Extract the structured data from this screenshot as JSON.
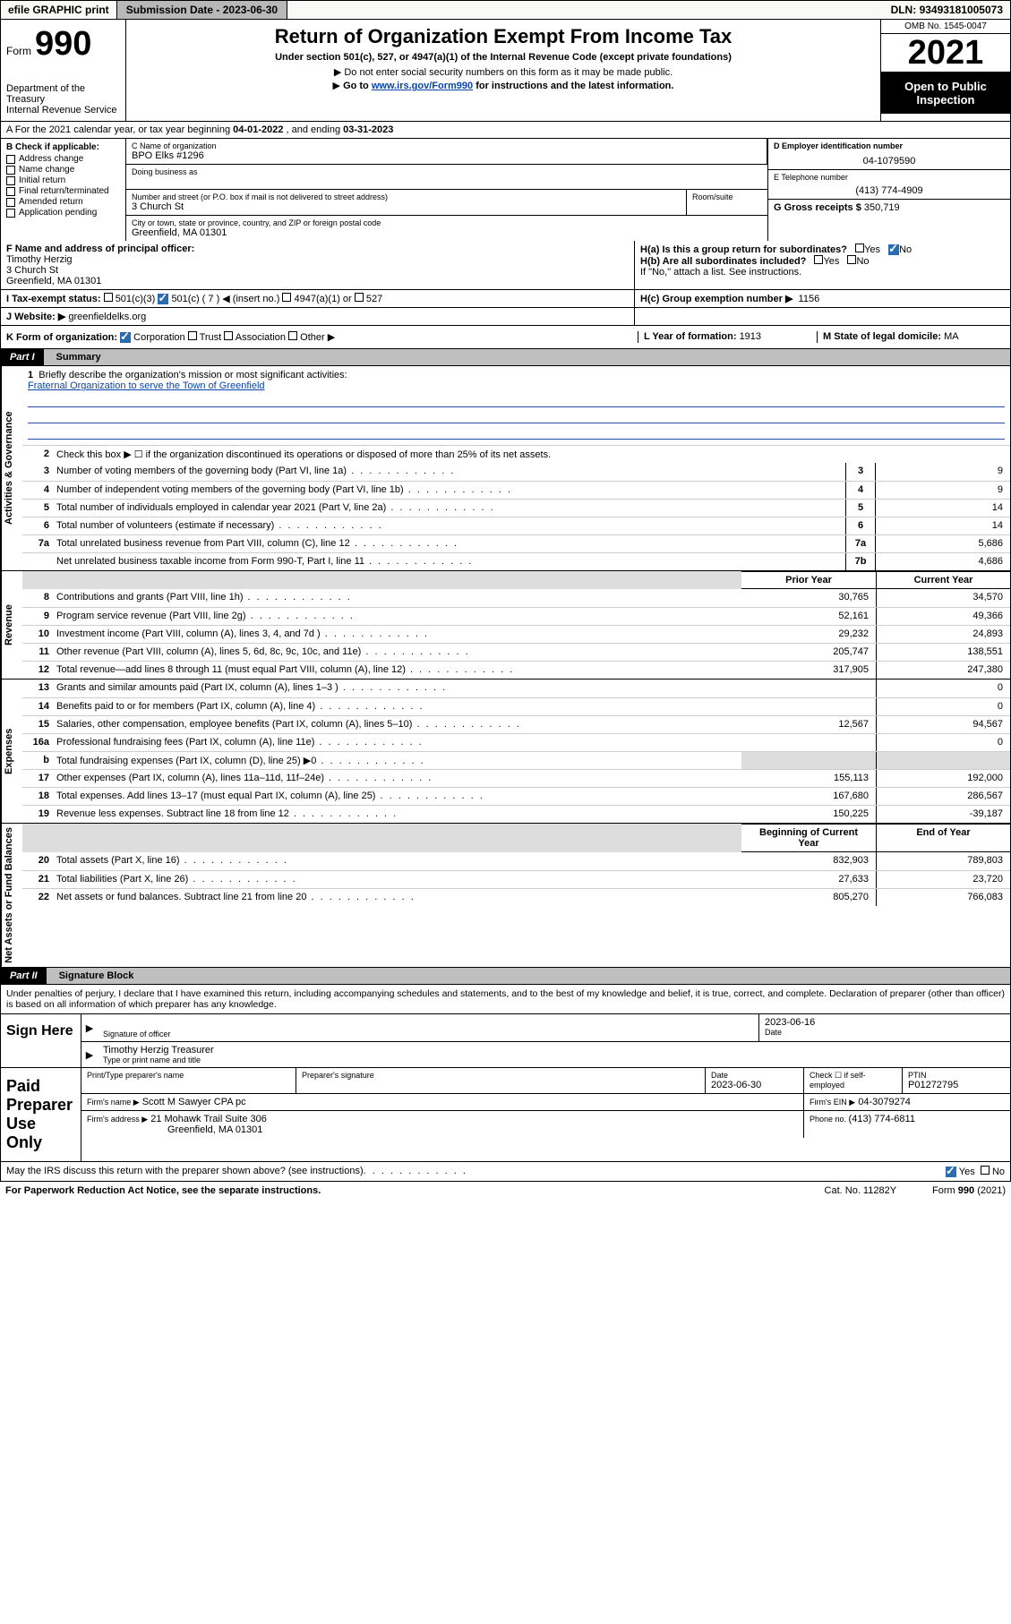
{
  "topbar": {
    "efile": "efile GRAPHIC print",
    "sub_label": "Submission Date - ",
    "sub_date": "2023-06-30",
    "dln_label": "DLN: ",
    "dln": "93493181005073"
  },
  "header": {
    "form_word": "Form",
    "form_num": "990",
    "dept": "Department of the Treasury",
    "irs": "Internal Revenue Service",
    "title": "Return of Organization Exempt From Income Tax",
    "subtitle": "Under section 501(c), 527, or 4947(a)(1) of the Internal Revenue Code (except private foundations)",
    "note1": "Do not enter social security numbers on this form as it may be made public.",
    "note2_pre": "Go to ",
    "note2_link": "www.irs.gov/Form990",
    "note2_post": " for instructions and the latest information.",
    "omb": "OMB No. 1545-0047",
    "year": "2021",
    "open": "Open to Public Inspection"
  },
  "rowA": {
    "prefix": "A For the 2021 calendar year, or tax year beginning ",
    "begin": "04-01-2022",
    "mid": " , and ending ",
    "end": "03-31-2023"
  },
  "colB": {
    "header": "B Check if applicable:",
    "items": [
      "Address change",
      "Name change",
      "Initial return",
      "Final return/terminated",
      "Amended return",
      "Application pending"
    ]
  },
  "colC": {
    "name_lbl": "C Name of organization",
    "name": "BPO Elks #1296",
    "dba_lbl": "Doing business as",
    "dba": "",
    "street_lbl": "Number and street (or P.O. box if mail is not delivered to street address)",
    "street": "3 Church St",
    "room_lbl": "Room/suite",
    "city_lbl": "City or town, state or province, country, and ZIP or foreign postal code",
    "city": "Greenfield, MA  01301"
  },
  "colDE": {
    "d_lbl": "D Employer identification number",
    "d_val": "04-1079590",
    "e_lbl": "E Telephone number",
    "e_val": "(413) 774-4909",
    "g_lbl": "G Gross receipts $ ",
    "g_val": "350,719"
  },
  "rowF": {
    "f_lbl": "F Name and address of principal officer:",
    "f_name": "Timothy Herzig",
    "f_street": "3 Church St",
    "f_city": "Greenfield, MA  01301",
    "ha_lbl": "H(a)  Is this a group return for subordinates?",
    "ha_yes": "Yes",
    "ha_no": "No",
    "hb_lbl": "H(b)  Are all subordinates included?",
    "hb_note": "If \"No,\" attach a list. See instructions.",
    "i_lbl": "I     Tax-exempt status:",
    "i_501c3": "501(c)(3)",
    "i_501c": "501(c) ( 7 ) ◀ (insert no.)",
    "i_4947": "4947(a)(1) or",
    "i_527": "527",
    "hc_lbl": "H(c)  Group exemption number ▶",
    "hc_val": "1156",
    "j_lbl": "J     Website: ▶",
    "j_val": "greenfieldelks.org"
  },
  "rowK": {
    "k_lbl": "K Form of organization:",
    "k_corp": "Corporation",
    "k_trust": "Trust",
    "k_assoc": "Association",
    "k_other": "Other ▶",
    "l_lbl": "L Year of formation: ",
    "l_val": "1913",
    "m_lbl": "M State of legal domicile: ",
    "m_val": "MA"
  },
  "parts": {
    "p1": "Part I",
    "p1n": "Summary",
    "p2": "Part II",
    "p2n": "Signature Block"
  },
  "summary": {
    "l1_lbl": "Briefly describe the organization's mission or most significant activities:",
    "l1_txt": "Fraternal Organization to serve the Town of Greenfield",
    "l2": "Check this box ▶ ☐  if the organization discontinued its operations or disposed of more than 25% of its net assets.",
    "lines_main": [
      {
        "n": "3",
        "t": "Number of voting members of the governing body (Part VI, line 1a)",
        "b": "3",
        "v": "9"
      },
      {
        "n": "4",
        "t": "Number of independent voting members of the governing body (Part VI, line 1b)",
        "b": "4",
        "v": "9"
      },
      {
        "n": "5",
        "t": "Total number of individuals employed in calendar year 2021 (Part V, line 2a)",
        "b": "5",
        "v": "14"
      },
      {
        "n": "6",
        "t": "Total number of volunteers (estimate if necessary)",
        "b": "6",
        "v": "14"
      },
      {
        "n": "7a",
        "t": "Total unrelated business revenue from Part VIII, column (C), line 12",
        "b": "7a",
        "v": "5,686"
      },
      {
        "n": "",
        "t": "Net unrelated business taxable income from Form 990-T, Part I, line 11",
        "b": "7b",
        "v": "4,686"
      }
    ],
    "yr_prior": "Prior Year",
    "yr_curr": "Current Year",
    "revenue": [
      {
        "n": "8",
        "t": "Contributions and grants (Part VIII, line 1h)",
        "p": "30,765",
        "c": "34,570"
      },
      {
        "n": "9",
        "t": "Program service revenue (Part VIII, line 2g)",
        "p": "52,161",
        "c": "49,366"
      },
      {
        "n": "10",
        "t": "Investment income (Part VIII, column (A), lines 3, 4, and 7d )",
        "p": "29,232",
        "c": "24,893"
      },
      {
        "n": "11",
        "t": "Other revenue (Part VIII, column (A), lines 5, 6d, 8c, 9c, 10c, and 11e)",
        "p": "205,747",
        "c": "138,551"
      },
      {
        "n": "12",
        "t": "Total revenue—add lines 8 through 11 (must equal Part VIII, column (A), line 12)",
        "p": "317,905",
        "c": "247,380"
      }
    ],
    "expenses": [
      {
        "n": "13",
        "t": "Grants and similar amounts paid (Part IX, column (A), lines 1–3 )",
        "p": "",
        "c": "0"
      },
      {
        "n": "14",
        "t": "Benefits paid to or for members (Part IX, column (A), line 4)",
        "p": "",
        "c": "0"
      },
      {
        "n": "15",
        "t": "Salaries, other compensation, employee benefits (Part IX, column (A), lines 5–10)",
        "p": "12,567",
        "c": "94,567"
      },
      {
        "n": "16a",
        "t": "Professional fundraising fees (Part IX, column (A), line 11e)",
        "p": "",
        "c": "0"
      },
      {
        "n": "b",
        "t": "Total fundraising expenses (Part IX, column (D), line 25) ▶0",
        "p": "grey",
        "c": "grey"
      },
      {
        "n": "17",
        "t": "Other expenses (Part IX, column (A), lines 11a–11d, 11f–24e)",
        "p": "155,113",
        "c": "192,000"
      },
      {
        "n": "18",
        "t": "Total expenses. Add lines 13–17 (must equal Part IX, column (A), line 25)",
        "p": "167,680",
        "c": "286,567"
      },
      {
        "n": "19",
        "t": "Revenue less expenses. Subtract line 18 from line 12",
        "p": "150,225",
        "c": "-39,187"
      }
    ],
    "na_hdr_p": "Beginning of Current Year",
    "na_hdr_c": "End of Year",
    "netassets": [
      {
        "n": "20",
        "t": "Total assets (Part X, line 16)",
        "p": "832,903",
        "c": "789,803"
      },
      {
        "n": "21",
        "t": "Total liabilities (Part X, line 26)",
        "p": "27,633",
        "c": "23,720"
      },
      {
        "n": "22",
        "t": "Net assets or fund balances. Subtract line 21 from line 20",
        "p": "805,270",
        "c": "766,083"
      }
    ]
  },
  "vlabels": {
    "ag": "Activities & Governance",
    "rev": "Revenue",
    "exp": "Expenses",
    "na": "Net Assets or Fund Balances"
  },
  "sig": {
    "decl": "Under penalties of perjury, I declare that I have examined this return, including accompanying schedules and statements, and to the best of my knowledge and belief, it is true, correct, and complete. Declaration of preparer (other than officer) is based on all information of which preparer has any knowledge.",
    "sign_here": "Sign Here",
    "sig_of_officer": "Signature of officer",
    "date_lbl": "Date",
    "date": "2023-06-16",
    "name_title": "Timothy Herzig  Treasurer",
    "type_name": "Type or print name and title",
    "paid": "Paid Preparer Use Only",
    "p_name_lbl": "Print/Type preparer's name",
    "p_sig_lbl": "Preparer's signature",
    "p_date_lbl": "Date",
    "p_date": "2023-06-30",
    "p_check": "Check ☐ if self-employed",
    "ptin_lbl": "PTIN",
    "ptin": "P01272795",
    "firm_name_lbl": "Firm's name   ▶",
    "firm_name": "Scott M Sawyer CPA pc",
    "firm_ein_lbl": "Firm's EIN ▶",
    "firm_ein": "04-3079274",
    "firm_addr_lbl": "Firm's address ▶",
    "firm_addr1": "21 Mohawk Trail Suite 306",
    "firm_addr2": "Greenfield, MA  01301",
    "phone_lbl": "Phone no. ",
    "phone": "(413) 774-6811"
  },
  "footer": {
    "q": "May the IRS discuss this return with the preparer shown above? (see instructions)",
    "yes": "Yes",
    "no": "No",
    "pra": "For Paperwork Reduction Act Notice, see the separate instructions.",
    "cat": "Cat. No. 11282Y",
    "form": "Form 990 (2021)"
  }
}
